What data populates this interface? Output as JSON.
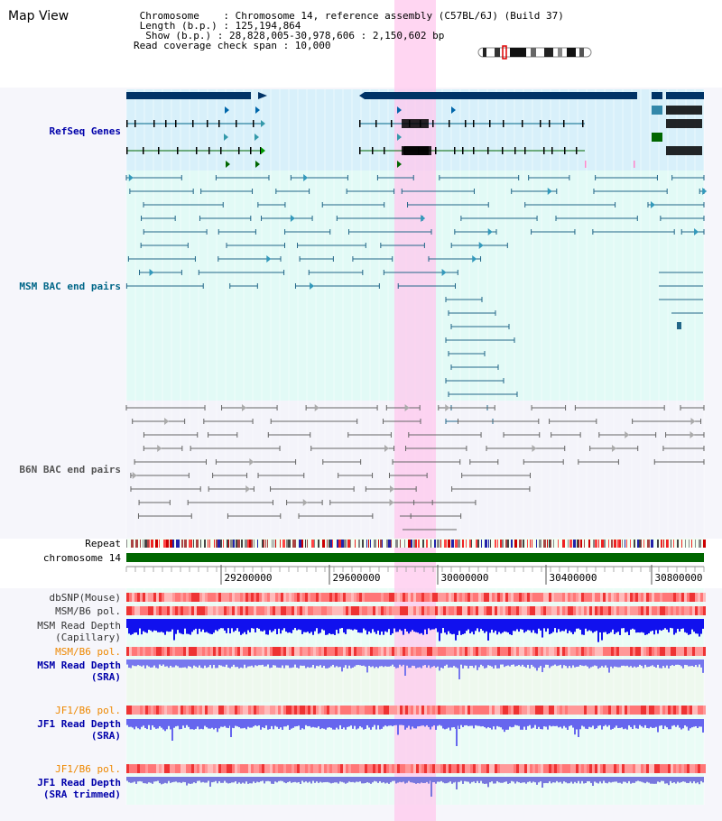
{
  "title": "Map View",
  "info": {
    "line1": " Chromosome    : Chromosome 14, reference assembly (C57BL/6J) (Build 37)",
    "line2": " Length (b.p.) : 125,194,864",
    "line3": "  Show (b.p.) : 28,828,005-30,978,606 : 2,150,602 bp",
    "line4": "Read coverage check span : 10,000"
  },
  "tracks": {
    "refseq": "RefSeq Genes",
    "msm_bac": "MSM BAC end pairs",
    "b6n_bac": "B6N BAC end pairs",
    "repeat": "Repeat",
    "chromosome": "chromosome 14",
    "dbsnp": "dbSNP(Mouse)",
    "msm_pol1": "MSM/B6 pol.",
    "msm_depth_cap_1": "MSM Read Depth",
    "msm_depth_cap_2": "(Capillary)",
    "msm_pol2": "MSM/B6 pol.",
    "msm_depth_sra_1": "MSM Read Depth",
    "msm_depth_sra_2": "(SRA)",
    "jf1_pol1": "JF1/B6 pol.",
    "jf1_depth_sra_1": "JF1 Read Depth",
    "jf1_depth_sra_2": "(SRA)",
    "jf1_pol2": "JF1/B6 pol.",
    "jf1_depth_trim_1": "JF1 Read Depth",
    "jf1_depth_trim_2": "(SRA trimmed)"
  },
  "axis": {
    "ticks": [
      "29200000",
      "29600000",
      "30000000",
      "30400000",
      "30800000"
    ]
  },
  "colors": {
    "refseq_label": "#0000aa",
    "msm_label": "#006688",
    "b6n_label": "#555555",
    "orange_label": "#ee8800",
    "depth_label": "#0000aa",
    "highlight": "#ffccee",
    "chromosome_bar": "#006600"
  }
}
